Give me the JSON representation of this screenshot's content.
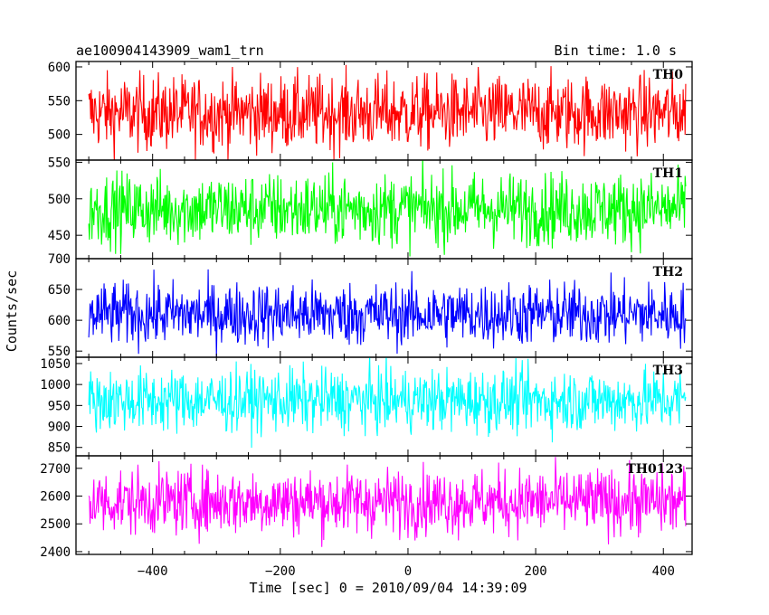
{
  "header": {
    "title": "ae100904143909_wam1_trn",
    "bin_time": "Bin time: 1.0 s"
  },
  "chart_data": {
    "type": "line",
    "title": "ae100904143909_wam1_trn",
    "subtitle": "Bin time: 1.0 s",
    "xlabel": "Time [sec] 0 = 2010/09/04 14:39:09",
    "ylabel": "Counts/sec",
    "xlim": [
      -520,
      445
    ],
    "x_range": [
      -500,
      435
    ],
    "x_ticks": [
      -400,
      -200,
      0,
      200,
      400
    ],
    "grid": false,
    "series": [
      {
        "name": "TH0",
        "color": "#ff0000",
        "mean": 532,
        "noise": 28,
        "ylim": [
          462,
          608
        ],
        "y_ticks": [
          500,
          550,
          600
        ]
      },
      {
        "name": "TH1",
        "color": "#00ff00",
        "mean": 486,
        "noise": 25,
        "ylim": [
          418,
          553
        ],
        "y_ticks": [
          450,
          500,
          550
        ]
      },
      {
        "name": "TH2",
        "color": "#0000ff",
        "mean": 610,
        "noise": 26,
        "ylim": [
          540,
          700
        ],
        "y_ticks": [
          550,
          600,
          650,
          700
        ]
      },
      {
        "name": "TH3",
        "color": "#00ffff",
        "mean": 962,
        "noise": 38,
        "ylim": [
          830,
          1065
        ],
        "y_ticks": [
          850,
          900,
          950,
          1000,
          1050
        ]
      },
      {
        "name": "TH0123",
        "color": "#ff00ff",
        "mean": 2580,
        "noise": 60,
        "ylim": [
          2390,
          2745
        ],
        "y_ticks": [
          2400,
          2500,
          2600,
          2700
        ]
      }
    ]
  }
}
